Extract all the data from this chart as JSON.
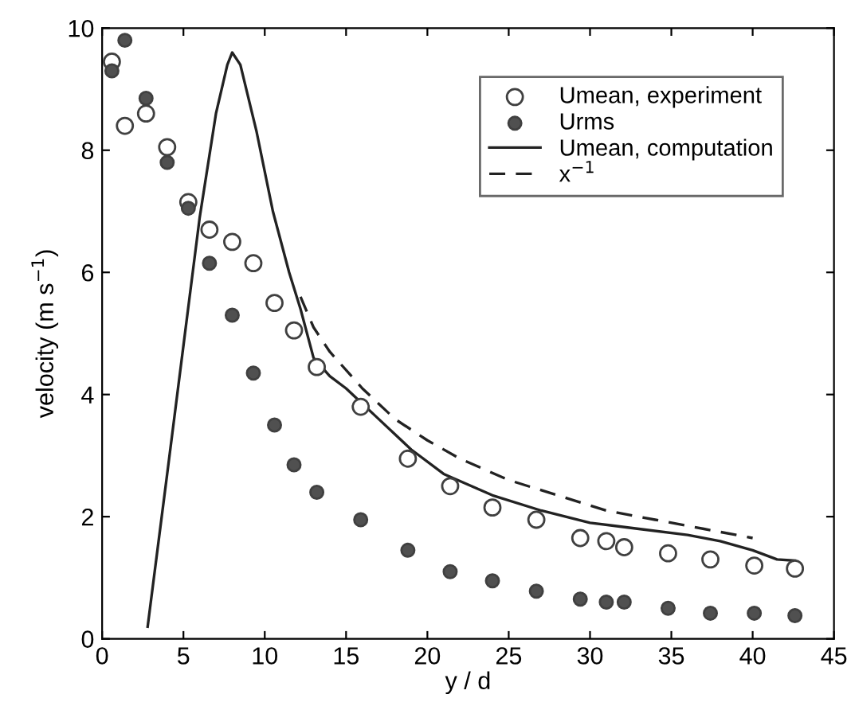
{
  "chart_data": {
    "type": "scatter",
    "xlabel": "y / d",
    "ylabel": "velocity (m s$^{−1}$)",
    "xlim": [
      0,
      45
    ],
    "ylim": [
      0,
      10
    ],
    "xticks": [
      0,
      5,
      10,
      15,
      20,
      25,
      30,
      35,
      40,
      45
    ],
    "yticks": [
      0,
      2,
      4,
      6,
      8,
      10
    ],
    "grid": false,
    "legend": "top right",
    "series": [
      {
        "name": "Umean, experiment",
        "marker": "circle",
        "color": "#ffffff",
        "x": [
          0.6,
          1.4,
          2.7,
          4.0,
          5.3,
          6.6,
          8.0,
          9.3,
          10.6,
          11.8,
          13.2,
          15.9,
          18.8,
          21.4,
          24.0,
          26.7,
          29.4,
          31.0,
          32.1,
          34.8,
          37.4,
          40.1,
          42.6
        ],
        "values": [
          9.45,
          8.4,
          8.6,
          8.05,
          7.15,
          6.7,
          6.5,
          6.15,
          5.5,
          5.05,
          4.45,
          3.8,
          2.95,
          2.5,
          2.15,
          1.95,
          1.65,
          1.6,
          1.5,
          1.4,
          1.3,
          1.2,
          1.15
        ]
      },
      {
        "name": "Urms",
        "marker": "circle",
        "color": "#505050",
        "x": [
          0.6,
          1.4,
          2.7,
          4.0,
          5.3,
          6.6,
          8.0,
          9.3,
          10.6,
          11.8,
          13.2,
          15.9,
          18.8,
          21.4,
          24.0,
          26.7,
          29.4,
          31.0,
          32.1,
          34.8,
          37.4,
          40.1,
          42.6
        ],
        "values": [
          9.3,
          9.8,
          8.85,
          7.8,
          7.05,
          6.15,
          5.3,
          4.35,
          3.5,
          2.85,
          2.4,
          1.95,
          1.45,
          1.1,
          0.95,
          0.78,
          0.65,
          0.6,
          0.6,
          0.5,
          0.42,
          0.42,
          0.38
        ]
      },
      {
        "name": "Umean, computation",
        "type": "line",
        "line_style": "solid",
        "marker": "none",
        "color": "#222222",
        "x": [
          2.8,
          4,
          5,
          6,
          7,
          7.7,
          8,
          8.5,
          9.5,
          10.5,
          11.5,
          12.2,
          13,
          14,
          15,
          17,
          19,
          21,
          24,
          27,
          30,
          33,
          36,
          38,
          40,
          41.5,
          42.6
        ],
        "values": [
          0.2,
          2.7,
          4.8,
          6.9,
          8.6,
          9.4,
          9.6,
          9.4,
          8.3,
          7.0,
          6.0,
          5.4,
          4.6,
          4.3,
          4.1,
          3.6,
          3.1,
          2.7,
          2.35,
          2.1,
          1.9,
          1.8,
          1.7,
          1.6,
          1.45,
          1.3,
          1.28
        ]
      },
      {
        "name": "x$^{−1}$",
        "type": "line",
        "line_style": "dashed",
        "marker": "none",
        "color": "#222222",
        "x": [
          12.2,
          13,
          14,
          16,
          18,
          20,
          22,
          25,
          28,
          31,
          34,
          37,
          40
        ],
        "values": [
          5.6,
          5.1,
          4.7,
          4.1,
          3.6,
          3.25,
          2.95,
          2.6,
          2.35,
          2.1,
          1.95,
          1.8,
          1.65
        ]
      }
    ]
  }
}
